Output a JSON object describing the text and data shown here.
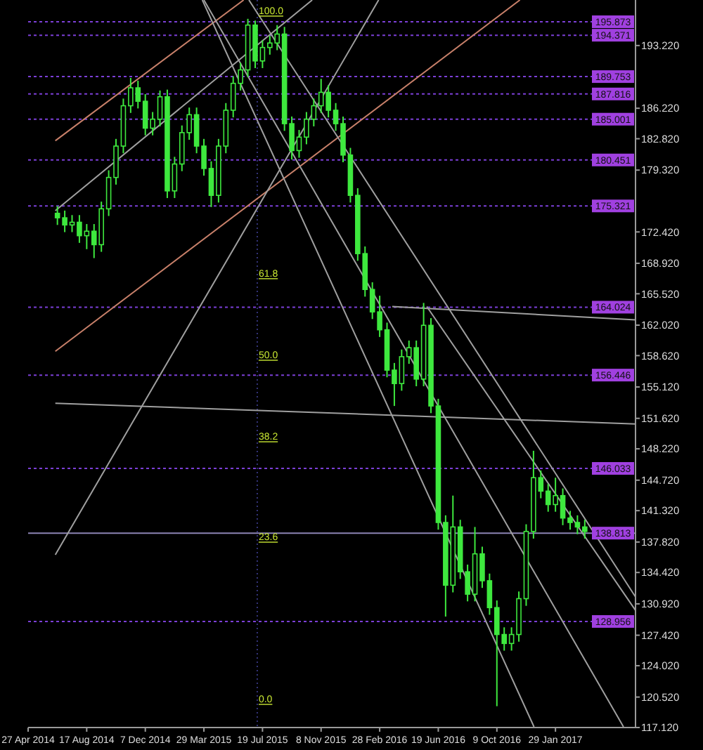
{
  "chart_data": {
    "type": "candlestick",
    "color": "#3ee83e",
    "x": [
      "2014-06-22",
      "2014-07-06",
      "2014-07-20",
      "2014-08-03",
      "2014-08-17",
      "2014-08-31",
      "2014-09-14",
      "2014-09-28",
      "2014-10-12",
      "2014-10-26",
      "2014-11-09",
      "2014-11-23",
      "2014-12-07",
      "2014-12-21",
      "2015-01-04",
      "2015-01-18",
      "2015-02-01",
      "2015-02-15",
      "2015-03-01",
      "2015-03-15",
      "2015-03-29",
      "2015-04-12",
      "2015-04-26",
      "2015-05-10",
      "2015-05-24",
      "2015-06-07",
      "2015-06-21",
      "2015-07-05",
      "2015-07-19",
      "2015-08-02",
      "2015-08-16",
      "2015-08-30",
      "2015-09-13",
      "2015-09-27",
      "2015-10-11",
      "2015-10-25",
      "2015-11-08",
      "2015-11-22",
      "2015-12-06",
      "2015-12-20",
      "2016-01-03",
      "2016-01-17",
      "2016-01-31",
      "2016-02-14",
      "2016-02-28",
      "2016-03-13",
      "2016-03-27",
      "2016-04-10",
      "2016-04-24",
      "2016-05-08",
      "2016-05-22",
      "2016-06-05",
      "2016-06-19",
      "2016-07-03",
      "2016-07-17",
      "2016-07-31",
      "2016-08-14",
      "2016-08-28",
      "2016-09-11",
      "2016-09-25",
      "2016-10-09",
      "2016-10-23",
      "2016-11-06",
      "2016-11-20",
      "2016-12-04",
      "2016-12-18",
      "2017-01-01",
      "2017-01-15",
      "2017-01-29",
      "2017-02-12",
      "2017-02-26",
      "2017-03-12",
      "2017-03-26"
    ],
    "ohlc": [
      [
        174.5,
        175.3,
        173.2,
        174.0
      ],
      [
        174.0,
        174.8,
        172.4,
        173.2
      ],
      [
        173.2,
        174.3,
        172.4,
        173.5
      ],
      [
        173.5,
        174.3,
        171.2,
        172.0
      ],
      [
        172.0,
        173.3,
        170.5,
        172.5
      ],
      [
        172.5,
        173.3,
        169.5,
        171.0
      ],
      [
        171.0,
        175.8,
        170.2,
        175.0
      ],
      [
        175.0,
        179.3,
        174.2,
        178.5
      ],
      [
        178.5,
        182.8,
        177.7,
        182.0
      ],
      [
        182.0,
        187.3,
        181.2,
        186.5
      ],
      [
        186.5,
        189.6,
        185.7,
        188.5
      ],
      [
        188.5,
        189.3,
        186.2,
        187.0
      ],
      [
        187.0,
        187.8,
        183.2,
        184.0
      ],
      [
        184.0,
        185.8,
        183.2,
        185.0
      ],
      [
        185.0,
        188.2,
        184.2,
        187.5
      ],
      [
        187.5,
        188.3,
        176.2,
        177.0
      ],
      [
        177.0,
        180.8,
        176.2,
        180.0
      ],
      [
        180.0,
        184.3,
        179.2,
        183.5
      ],
      [
        183.5,
        186.3,
        182.7,
        185.5
      ],
      [
        185.5,
        186.3,
        181.2,
        182.0
      ],
      [
        182.0,
        182.8,
        178.7,
        179.5
      ],
      [
        179.5,
        180.3,
        175.2,
        176.5
      ],
      [
        176.5,
        182.8,
        175.7,
        182.0
      ],
      [
        182.0,
        186.8,
        181.2,
        186.0
      ],
      [
        186.0,
        189.8,
        185.2,
        189.0
      ],
      [
        189.0,
        191.3,
        188.2,
        190.5
      ],
      [
        190.5,
        196.2,
        189.7,
        195.5
      ],
      [
        195.5,
        196.0,
        190.7,
        191.5
      ],
      [
        191.5,
        193.8,
        190.7,
        193.0
      ],
      [
        193.0,
        194.3,
        192.2,
        193.5
      ],
      [
        193.5,
        195.5,
        192.7,
        194.5
      ],
      [
        194.5,
        195.3,
        183.7,
        184.5
      ],
      [
        184.5,
        185.3,
        180.5,
        181.5
      ],
      [
        181.5,
        183.8,
        180.7,
        183.0
      ],
      [
        183.0,
        185.8,
        182.2,
        185.0
      ],
      [
        185.0,
        187.3,
        184.2,
        186.5
      ],
      [
        186.5,
        189.5,
        185.7,
        188.0
      ],
      [
        188.0,
        188.8,
        185.2,
        186.0
      ],
      [
        186.0,
        186.8,
        183.7,
        184.5
      ],
      [
        184.5,
        185.3,
        180.2,
        181.0
      ],
      [
        181.0,
        181.8,
        175.7,
        176.5
      ],
      [
        176.5,
        177.3,
        169.2,
        170.0
      ],
      [
        170.0,
        170.8,
        165.2,
        166.0
      ],
      [
        166.0,
        166.8,
        162.7,
        163.5
      ],
      [
        163.5,
        165.3,
        160.7,
        161.5
      ],
      [
        161.5,
        162.3,
        156.2,
        157.0
      ],
      [
        157.0,
        157.8,
        153.0,
        155.5
      ],
      [
        155.5,
        159.3,
        154.7,
        158.5
      ],
      [
        158.5,
        160.3,
        157.7,
        159.5
      ],
      [
        159.5,
        160.3,
        155.2,
        156.0
      ],
      [
        156.0,
        164.5,
        155.2,
        162.0
      ],
      [
        162.0,
        162.8,
        152.2,
        153.0
      ],
      [
        153.0,
        153.8,
        139.2,
        140.0
      ],
      [
        140.0,
        140.8,
        129.5,
        133.0
      ],
      [
        133.0,
        143.0,
        132.2,
        139.5
      ],
      [
        139.5,
        140.3,
        133.7,
        134.5
      ],
      [
        134.5,
        135.3,
        131.2,
        132.0
      ],
      [
        132.0,
        139.5,
        131.2,
        136.5
      ],
      [
        136.5,
        137.3,
        132.7,
        133.5
      ],
      [
        133.5,
        134.3,
        129.7,
        130.5
      ],
      [
        130.5,
        131.3,
        119.5,
        127.5
      ],
      [
        127.5,
        128.3,
        125.7,
        126.5
      ],
      [
        126.5,
        128.3,
        125.7,
        127.5
      ],
      [
        127.5,
        132.3,
        126.7,
        131.5
      ],
      [
        131.5,
        139.8,
        130.7,
        139.0
      ],
      [
        139.0,
        148.0,
        138.2,
        145.0
      ],
      [
        145.0,
        145.8,
        142.7,
        143.5
      ],
      [
        143.5,
        144.3,
        141.2,
        142.0
      ],
      [
        142.0,
        145.0,
        141.2,
        143.0
      ],
      [
        143.0,
        143.8,
        139.7,
        140.5
      ],
      [
        140.5,
        141.3,
        139.2,
        140.0
      ],
      [
        140.0,
        140.8,
        138.7,
        139.5
      ],
      [
        139.5,
        140.3,
        138.2,
        139.0
      ]
    ],
    "series": [
      {
        "type": "line",
        "color": "#c8806a",
        "x": [
          "2014-06-18",
          "2015-06-13"
        ],
        "values": [
          182.6,
          198.3
        ]
      },
      {
        "type": "line",
        "color": "#c8806a",
        "x": [
          "2014-06-18",
          "2016-11-22"
        ],
        "values": [
          159.1,
          198.3
        ]
      },
      {
        "type": "line",
        "color": "#a0a0a0",
        "x": [
          "2014-06-18",
          "2015-10-22"
        ],
        "values": [
          174.8,
          198.3
        ]
      },
      {
        "type": "line",
        "color": "#a0a0a0",
        "x": [
          "2014-06-18",
          "2016-02-26"
        ],
        "values": [
          136.4,
          198.3
        ]
      },
      {
        "type": "line",
        "color": "#a0a0a0",
        "x": [
          "2015-03-26",
          "2016-12-19"
        ],
        "values": [
          198.3,
          117.2
        ]
      },
      {
        "type": "line",
        "color": "#a0a0a0",
        "x": [
          "2015-03-29",
          "2017-06-08"
        ],
        "values": [
          198.3,
          117.2
        ]
      },
      {
        "type": "line",
        "color": "#a0a0a0",
        "x": [
          "2015-06-23",
          "2017-07-01"
        ],
        "values": [
          198.3,
          131.7
        ]
      },
      {
        "type": "line",
        "color": "#a0a0a0",
        "x": [
          "2016-05-28",
          "2017-07-01"
        ],
        "values": [
          164.1,
          130.2
        ]
      },
      {
        "type": "line",
        "color": "#a0a0a0",
        "x": [
          "2014-06-18",
          "2017-07-01"
        ],
        "values": [
          153.3,
          151.0
        ]
      },
      {
        "type": "line",
        "color": "#a0a0a0",
        "x": [
          "2016-03-23",
          "2017-07-01"
        ],
        "values": [
          164.1,
          162.6
        ]
      }
    ],
    "xlim": [
      "2014-04-27",
      "2017-07-01"
    ],
    "xticks": [
      {
        "value": "2014-04-27",
        "label": "27 Apr 2014"
      },
      {
        "value": "2014-08-17",
        "label": "17 Aug 2014"
      },
      {
        "value": "2014-12-07",
        "label": "7 Dec 2014"
      },
      {
        "value": "2015-03-29",
        "label": "29 Mar 2015"
      },
      {
        "value": "2015-07-19",
        "label": "19 Jul 2015"
      },
      {
        "value": "2015-11-08",
        "label": "8 Nov 2015"
      },
      {
        "value": "2016-02-28",
        "label": "28 Feb 2016"
      },
      {
        "value": "2016-06-19",
        "label": "19 Jun 2016"
      },
      {
        "value": "2016-10-09",
        "label": "9 Oct 2016"
      },
      {
        "value": "2017-01-29",
        "label": "29 Jan 2017"
      }
    ],
    "ylim": [
      117.12,
      198.3
    ],
    "yticks": [
      {
        "value": 117.12,
        "label": "117.120"
      },
      {
        "value": 120.52,
        "label": "120.520"
      },
      {
        "value": 124.02,
        "label": "124.020"
      },
      {
        "value": 127.42,
        "label": "127.420"
      },
      {
        "value": 130.92,
        "label": "130.920"
      },
      {
        "value": 134.42,
        "label": "134.420"
      },
      {
        "value": 137.82,
        "label": "137.820"
      },
      {
        "value": 141.32,
        "label": "141.320"
      },
      {
        "value": 144.72,
        "label": "144.720"
      },
      {
        "value": 148.22,
        "label": "148.220"
      },
      {
        "value": 151.62,
        "label": "151.620"
      },
      {
        "value": 155.12,
        "label": "155.120"
      },
      {
        "value": 158.62,
        "label": "158.620"
      },
      {
        "value": 162.02,
        "label": "162.020"
      },
      {
        "value": 165.52,
        "label": "165.520"
      },
      {
        "value": 168.92,
        "label": "168.920"
      },
      {
        "value": 172.42,
        "label": "172.420"
      },
      {
        "value": 179.32,
        "label": "179.320"
      },
      {
        "value": 182.82,
        "label": "182.820"
      },
      {
        "value": 186.22,
        "label": "186.220"
      },
      {
        "value": 193.22,
        "label": "193.220"
      }
    ],
    "ref_lines": [
      {
        "axis": "y",
        "value": 195.873,
        "label": "195.873",
        "color": "#7b3fd6",
        "line_style": "dashed"
      },
      {
        "axis": "y",
        "value": 194.371,
        "label": "194.371",
        "color": "#7b3fd6",
        "line_style": "dashed"
      },
      {
        "axis": "y",
        "value": 189.753,
        "label": "189.753",
        "color": "#7b3fd6",
        "line_style": "dashed"
      },
      {
        "axis": "y",
        "value": 187.816,
        "label": "187.816",
        "color": "#7b3fd6",
        "line_style": "dashed"
      },
      {
        "axis": "y",
        "value": 185.001,
        "label": "185.001",
        "color": "#7b3fd6",
        "line_style": "dashed"
      },
      {
        "axis": "y",
        "value": 180.451,
        "label": "180.451",
        "color": "#7b3fd6",
        "line_style": "dashed"
      },
      {
        "axis": "y",
        "value": 175.321,
        "label": "175.321",
        "color": "#7b3fd6",
        "line_style": "dashed"
      },
      {
        "axis": "y",
        "value": 164.024,
        "label": "164.024",
        "color": "#7b3fd6",
        "line_style": "dashed"
      },
      {
        "axis": "y",
        "value": 156.446,
        "label": "156.446",
        "color": "#7b3fd6",
        "line_style": "dashed"
      },
      {
        "axis": "y",
        "value": 146.033,
        "label": "146.033",
        "color": "#7b3fd6",
        "line_style": "dashed"
      },
      {
        "axis": "y",
        "value": 138.813,
        "label": "138.813",
        "color": "#8c84b4",
        "line_style": "solid"
      },
      {
        "axis": "y",
        "value": 128.956,
        "label": "128.956",
        "color": "#7b3fd6",
        "line_style": "dashed"
      },
      {
        "axis": "x",
        "value": "2015-07-09",
        "color": "#34347a",
        "line_style": "dotted"
      }
    ],
    "annotations": [
      {
        "text": "100.0",
        "x": "2015-07-09",
        "y": 196.4
      },
      {
        "text": "61.8",
        "x": "2015-07-09",
        "y": 167.1
      },
      {
        "text": "50.0",
        "x": "2015-07-09",
        "y": 158.0
      },
      {
        "text": "38.2",
        "x": "2015-07-09",
        "y": 148.9
      },
      {
        "text": "23.6",
        "x": "2015-07-09",
        "y": 137.7
      },
      {
        "text": "0.0",
        "x": "2015-07-09",
        "y": 119.6
      }
    ]
  }
}
